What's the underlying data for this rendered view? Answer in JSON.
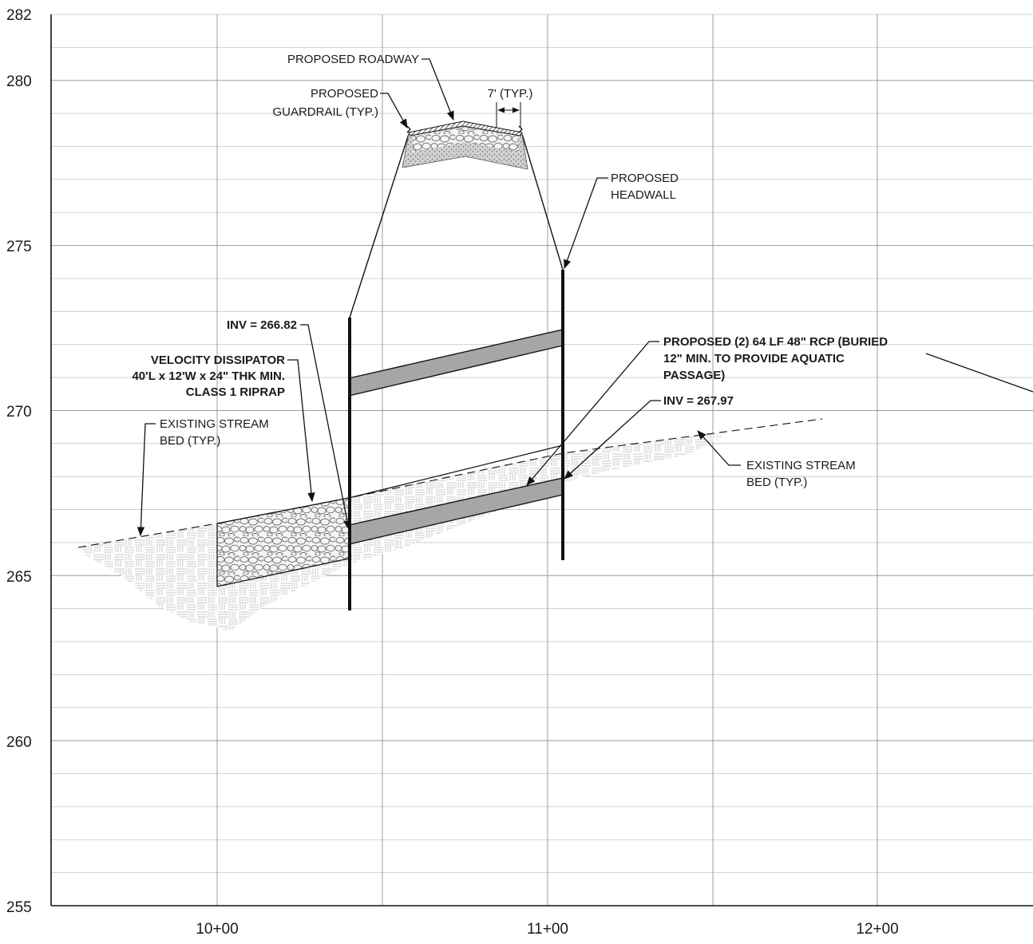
{
  "drawing": {
    "y_axis": {
      "min": 255,
      "max": 282,
      "tick_labels": [
        "282",
        "280",
        "275",
        "270",
        "265",
        "260",
        "255"
      ]
    },
    "x_axis": {
      "tick_labels": [
        "10+00",
        "11+00",
        "12+00"
      ]
    },
    "labels": {
      "roadway": "PROPOSED ROADWAY",
      "guardrail_1": "PROPOSED",
      "guardrail_2": "GUARDRAIL (TYP.)",
      "shoulder_dim": "7' (TYP.)",
      "headwall_1": "PROPOSED",
      "headwall_2": "HEADWALL",
      "inv_inlet": "INV = 266.82",
      "dissipator_1": "VELOCITY DISSIPATOR",
      "dissipator_2": "40'L x 12'W x 24\" THK MIN.",
      "dissipator_3": "CLASS 1 RIPRAP",
      "stream_left_1": "EXISTING STREAM",
      "stream_left_2": "BED (TYP.)",
      "pipe_1": "PROPOSED (2) 64 LF 48\" RCP (BURIED",
      "pipe_2": "12\" MIN. TO PROVIDE AQUATIC",
      "pipe_3": "PASSAGE)",
      "inv_outlet": "INV = 267.97",
      "stream_right_1": "EXISTING STREAM",
      "stream_right_2": "BED (TYP.)"
    },
    "colors": {
      "pipe_fill": "#a6a6a6",
      "line": "#111111",
      "pavement": "#6e6e6e",
      "riprap_fill": "#e8e8e8",
      "gravel_fill": "#c8c8c8"
    }
  }
}
